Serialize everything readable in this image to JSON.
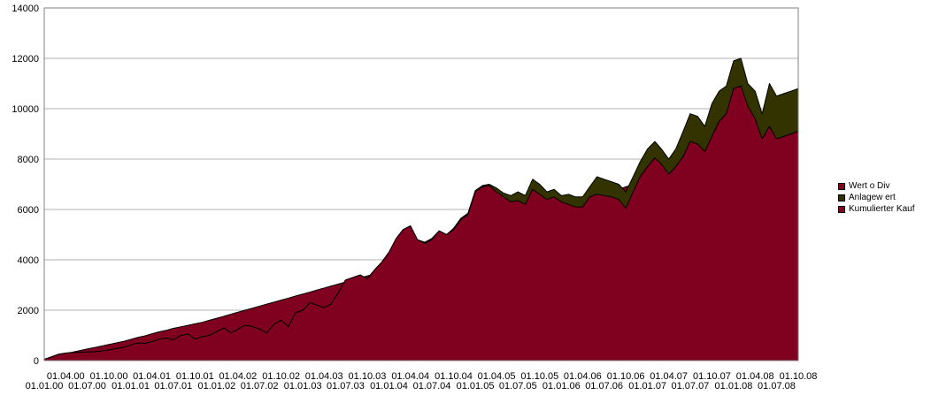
{
  "chart_data": {
    "type": "area",
    "ylim": [
      0,
      14000
    ],
    "yticks": [
      0,
      2000,
      4000,
      6000,
      8000,
      10000,
      12000,
      14000
    ],
    "grid": true,
    "legend_position": "right",
    "x_dates": [
      "2000-01-01",
      "2000-02-01",
      "2000-03-01",
      "2000-04-01",
      "2000-05-01",
      "2000-06-01",
      "2000-07-01",
      "2000-08-01",
      "2000-09-01",
      "2000-10-01",
      "2000-11-01",
      "2000-12-01",
      "2001-01-01",
      "2001-02-01",
      "2001-03-01",
      "2001-04-01",
      "2001-05-01",
      "2001-06-01",
      "2001-07-01",
      "2001-08-01",
      "2001-09-01",
      "2001-10-01",
      "2001-11-01",
      "2001-12-01",
      "2002-01-01",
      "2002-02-01",
      "2002-03-01",
      "2002-04-01",
      "2002-05-01",
      "2002-06-01",
      "2002-07-01",
      "2002-08-01",
      "2002-09-01",
      "2002-10-01",
      "2002-11-01",
      "2002-12-01",
      "2003-01-01",
      "2003-02-01",
      "2003-03-01",
      "2003-04-01",
      "2003-05-01",
      "2003-06-01",
      "2003-07-01",
      "2003-08-01",
      "2003-09-01",
      "2003-10-01",
      "2003-11-01",
      "2003-12-01",
      "2004-01-01",
      "2004-02-01",
      "2004-03-01",
      "2004-04-01",
      "2004-05-01",
      "2004-06-01",
      "2004-07-01",
      "2004-08-01",
      "2004-09-01",
      "2004-10-01",
      "2004-11-01",
      "2004-12-01",
      "2005-01-01",
      "2005-02-01",
      "2005-03-01",
      "2005-04-01",
      "2005-05-01",
      "2005-06-01",
      "2005-07-01",
      "2005-08-01",
      "2005-09-01",
      "2005-10-01",
      "2005-11-01",
      "2005-12-01",
      "2006-01-01",
      "2006-02-01",
      "2006-03-01",
      "2006-04-01",
      "2006-05-01",
      "2006-06-01",
      "2006-07-01",
      "2006-08-01",
      "2006-09-01",
      "2006-10-01",
      "2006-11-01",
      "2006-12-01",
      "2007-01-01",
      "2007-02-01",
      "2007-03-01",
      "2007-04-01",
      "2007-05-01",
      "2007-06-01",
      "2007-07-01",
      "2007-08-01",
      "2007-09-01",
      "2007-10-01",
      "2007-11-01",
      "2007-12-01",
      "2008-01-01",
      "2008-02-01",
      "2008-03-01",
      "2008-04-01",
      "2008-05-01",
      "2008-06-01",
      "2008-07-01",
      "2008-08-01",
      "2008-09-01",
      "2008-10-01"
    ],
    "x_tick_labels_top": [
      "01.04.00",
      "01.10.00",
      "01.04.01",
      "01.10.01",
      "01.04.02",
      "01.10.02",
      "01.04.03",
      "01.10.03",
      "01.04.04",
      "01.10.04",
      "01.04.05",
      "01.10.05",
      "01.04.06",
      "01.10.06",
      "01.04.07",
      "01.10.07",
      "01.04.08",
      "01.10.08"
    ],
    "x_tick_labels_bottom": [
      "01.01.00",
      "01.07.00",
      "01.01.01",
      "01.07.01",
      "01.01.02",
      "01.07.02",
      "01.01.03",
      "01.07.03",
      "01.01.04",
      "01.07.04",
      "01.01.05",
      "01.07.05",
      "01.01.06",
      "01.07.06",
      "01.01.07",
      "01.07.07",
      "01.01.08",
      "01.07.08"
    ],
    "series": [
      {
        "name": "Wert o Div",
        "color": "#800020",
        "values": [
          50,
          150,
          250,
          300,
          320,
          330,
          340,
          350,
          380,
          420,
          480,
          520,
          620,
          700,
          680,
          750,
          850,
          900,
          820,
          1000,
          1050,
          850,
          950,
          1000,
          1150,
          1300,
          1100,
          1250,
          1400,
          1350,
          1250,
          1100,
          1450,
          1600,
          1350,
          1900,
          2000,
          2300,
          2200,
          2100,
          2250,
          2700,
          3200,
          3300,
          3400,
          3250,
          3600,
          3900,
          4300,
          4850,
          5200,
          5350,
          4800,
          4650,
          4800,
          5150,
          5000,
          5200,
          5600,
          5800,
          6700,
          6900,
          6950,
          6700,
          6500,
          6300,
          6350,
          6200,
          6800,
          6600,
          6400,
          6500,
          6300,
          6200,
          6100,
          6100,
          6500,
          6600,
          6550,
          6500,
          6400,
          6050,
          6700,
          7300,
          7700,
          8050,
          7800,
          7400,
          7700,
          8100,
          8700,
          8600,
          8300,
          8900,
          9500,
          9800,
          10800,
          10900,
          10100,
          9600,
          8800,
          9300,
          8800,
          8900,
          9000,
          9100
        ]
      },
      {
        "name": "Anlagew ert",
        "color": "#333300",
        "values": [
          50,
          150,
          250,
          300,
          320,
          330,
          340,
          350,
          380,
          420,
          480,
          520,
          620,
          700,
          680,
          750,
          850,
          900,
          820,
          1000,
          1050,
          850,
          950,
          1000,
          1150,
          1300,
          1100,
          1250,
          1400,
          1350,
          1250,
          1100,
          1450,
          1600,
          1350,
          1900,
          2000,
          2300,
          2200,
          2100,
          2250,
          2700,
          3200,
          3300,
          3400,
          3250,
          3600,
          3900,
          4300,
          4850,
          5200,
          5350,
          4800,
          4700,
          4850,
          5150,
          5000,
          5250,
          5650,
          5850,
          6750,
          6950,
          7000,
          6850,
          6650,
          6550,
          6700,
          6550,
          7200,
          7000,
          6700,
          6800,
          6550,
          6600,
          6500,
          6500,
          6900,
          7300,
          7200,
          7100,
          7000,
          6700,
          7300,
          7900,
          8400,
          8700,
          8400,
          8000,
          8400,
          9100,
          9800,
          9700,
          9300,
          10200,
          10700,
          10900,
          11900,
          12000,
          11000,
          10700,
          9800,
          11000,
          10500,
          10600,
          10700,
          10800
        ]
      },
      {
        "name": "Kumulierter Kauf",
        "color": "#800020",
        "values": [
          50,
          120,
          200,
          280,
          340,
          400,
          460,
          520,
          580,
          640,
          700,
          760,
          840,
          920,
          980,
          1060,
          1140,
          1200,
          1280,
          1340,
          1400,
          1460,
          1520,
          1600,
          1680,
          1760,
          1840,
          1920,
          2000,
          2080,
          2160,
          2240,
          2320,
          2400,
          2480,
          2560,
          2640,
          2720,
          2800,
          2880,
          2960,
          3040,
          3120,
          3200,
          3280,
          3360,
          3440,
          3520,
          3600,
          3700,
          3800,
          3900,
          4000,
          4100,
          4200,
          4300,
          4400,
          4500,
          4600,
          4700,
          4800,
          4900,
          5000,
          5100,
          5200,
          5300,
          5400,
          5500,
          5600,
          5700,
          5800,
          5900,
          6000,
          6100,
          6200,
          6300,
          6400,
          6500,
          6600,
          6700,
          6800,
          6900,
          7000,
          7100,
          7200,
          7300,
          7400,
          7500,
          7600,
          7700,
          7800,
          7900,
          8000,
          8100,
          8200,
          8300,
          8400,
          8500,
          8600,
          8700,
          8800,
          8900,
          9000,
          9100,
          9200,
          9300
        ]
      }
    ]
  }
}
